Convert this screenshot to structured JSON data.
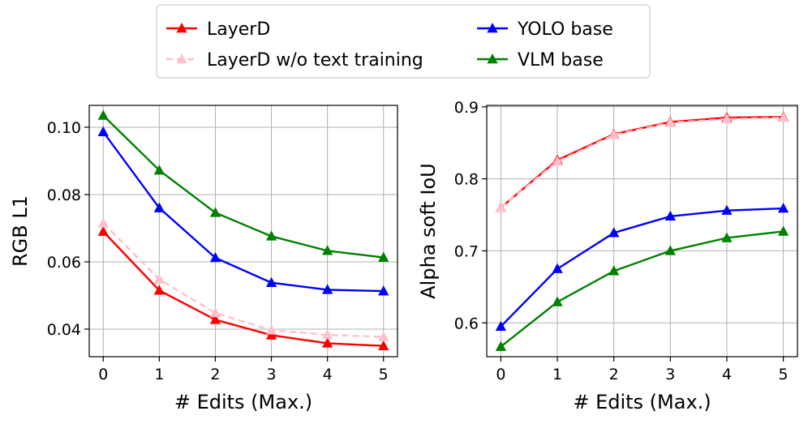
{
  "legend": {
    "placement": "top-center",
    "entries": [
      {
        "label": "LayerD",
        "color": "#ff0000",
        "style": "solid"
      },
      {
        "label": "LayerD w/o text training",
        "color": "#ffc0cb",
        "style": "dashed"
      },
      {
        "label": "YOLO base",
        "color": "#0000ff",
        "style": "solid"
      },
      {
        "label": "VLM base",
        "color": "#008000",
        "style": "solid"
      }
    ]
  },
  "chart_data": [
    {
      "type": "line",
      "xlabel": "# Edits (Max.)",
      "ylabel": "RGB L1",
      "x": [
        0,
        1,
        2,
        3,
        4,
        5
      ],
      "xlim": [
        -0.25,
        5.25
      ],
      "ylim": [
        0.0318,
        0.1065
      ],
      "yticks": [
        "0.04",
        "0.06",
        "0.08",
        "0.10"
      ],
      "ytick_values": [
        0.04,
        0.06,
        0.08,
        0.1
      ],
      "grid": true,
      "marker": "triangle",
      "series": [
        {
          "name": "LayerD",
          "color": "#ff0000",
          "style": "solid",
          "values": [
            0.069,
            0.0515,
            0.0428,
            0.0382,
            0.0358,
            0.035
          ]
        },
        {
          "name": "LayerD w/o text training",
          "color": "#ffc0cb",
          "style": "dashed",
          "values": [
            0.0715,
            0.0548,
            0.0448,
            0.0397,
            0.0383,
            0.0377
          ]
        },
        {
          "name": "YOLO base",
          "color": "#0000ff",
          "style": "solid",
          "values": [
            0.0986,
            0.076,
            0.0612,
            0.0538,
            0.0517,
            0.0513
          ]
        },
        {
          "name": "VLM base",
          "color": "#008000",
          "style": "solid",
          "values": [
            0.1035,
            0.0872,
            0.0746,
            0.0676,
            0.0633,
            0.0613
          ]
        }
      ]
    },
    {
      "type": "line",
      "xlabel": "# Edits (Max.)",
      "ylabel": "Alpha soft IoU",
      "x": [
        0,
        1,
        2,
        3,
        4,
        5
      ],
      "xlim": [
        -0.25,
        5.25
      ],
      "ylim": [
        0.553,
        0.902
      ],
      "yticks": [
        "0.6",
        "0.7",
        "0.8",
        "0.9"
      ],
      "ytick_values": [
        0.6,
        0.7,
        0.8,
        0.9
      ],
      "grid": true,
      "marker": "triangle",
      "series": [
        {
          "name": "LayerD",
          "color": "#ff0000",
          "style": "solid",
          "values": [
            0.76,
            0.826,
            0.862,
            0.879,
            0.885,
            0.886
          ]
        },
        {
          "name": "LayerD w/o text training",
          "color": "#ffc0cb",
          "style": "dashed",
          "values": [
            0.76,
            0.824,
            0.861,
            0.878,
            0.883,
            0.885
          ]
        },
        {
          "name": "YOLO base",
          "color": "#0000ff",
          "style": "solid",
          "values": [
            0.595,
            0.675,
            0.725,
            0.748,
            0.756,
            0.759
          ]
        },
        {
          "name": "VLM base",
          "color": "#008000",
          "style": "solid",
          "values": [
            0.567,
            0.629,
            0.672,
            0.7,
            0.718,
            0.727
          ]
        }
      ]
    }
  ]
}
